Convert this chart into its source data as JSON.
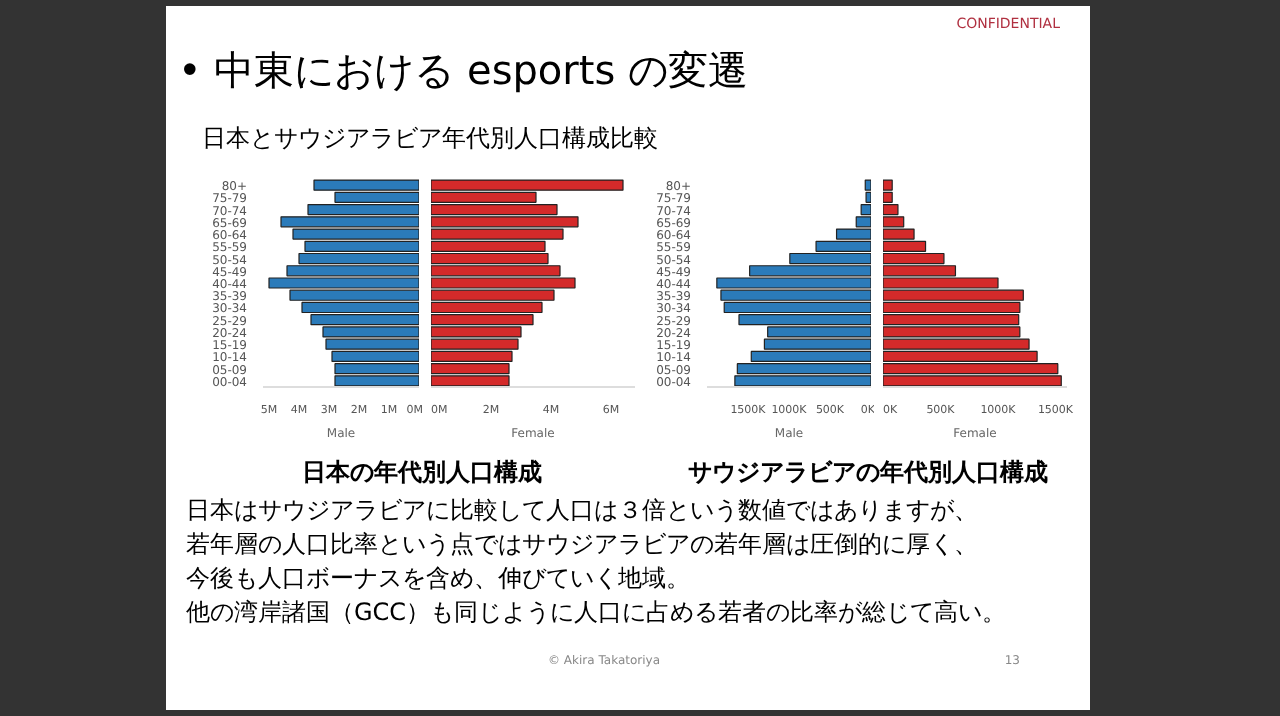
{
  "chart_data": [
    {
      "type": "other",
      "title": "• 中東における esports の変遷",
      "subtitle": "日本とサウジアラビア年代別人口構成比較",
      "annotations": [
        "CONFIDENTIAL"
      ]
    },
    {
      "type": "bar",
      "orientation": "horizontal",
      "title": "日本の年代別人口構成",
      "xlabel": "Male",
      "categories": [
        "80+",
        "75-79",
        "70-74",
        "65-69",
        "60-64",
        "55-59",
        "50-54",
        "45-49",
        "40-44",
        "35-39",
        "30-34",
        "25-29",
        "20-24",
        "15-19",
        "10-14",
        "05-09",
        "00-04"
      ],
      "series": [
        {
          "color": "#2b7bba",
          "values": [
            3.5,
            2.8,
            3.7,
            4.6,
            4.2,
            3.8,
            4.0,
            4.4,
            5.0,
            4.3,
            3.9,
            3.6,
            3.2,
            3.1,
            2.9,
            2.8,
            2.8
          ]
        }
      ],
      "xlim": [
        5.2,
        0
      ],
      "xticks": [
        {
          "value": 5,
          "label": "5M"
        },
        {
          "value": 4,
          "label": "4M"
        },
        {
          "value": 3,
          "label": "3M"
        },
        {
          "value": 2,
          "label": "2M"
        },
        {
          "value": 1,
          "label": "1M"
        },
        {
          "value": 0,
          "label": "0M"
        }
      ]
    },
    {
      "type": "bar",
      "orientation": "horizontal",
      "xlabel": "Female",
      "categories": [
        null,
        null,
        null,
        null,
        null,
        null,
        null,
        null,
        null,
        null,
        null,
        null,
        null,
        null,
        null,
        null,
        null
      ],
      "series": [
        {
          "color": "#d42a2a",
          "values": [
            6.4,
            3.5,
            4.2,
            4.9,
            4.4,
            3.8,
            3.9,
            4.3,
            4.8,
            4.1,
            3.7,
            3.4,
            3.0,
            2.9,
            2.7,
            2.6,
            2.6
          ]
        }
      ],
      "xlim": [
        0,
        6.8
      ],
      "xticks": [
        {
          "value": 0,
          "label": "0M"
        },
        {
          "value": 2,
          "label": "2M"
        },
        {
          "value": 4,
          "label": "4M"
        },
        {
          "value": 6,
          "label": "6M"
        }
      ]
    },
    {
      "type": "bar",
      "orientation": "horizontal",
      "title": "サウジアラビアの年代別人口構成",
      "xlabel": "Male",
      "categories": [
        "80+",
        "75-79",
        "70-74",
        "65-69",
        "60-64",
        "55-59",
        "50-54",
        "45-49",
        "40-44",
        "35-39",
        "30-34",
        "25-29",
        "20-24",
        "15-19",
        "10-14",
        "05-09",
        "00-04"
      ],
      "series": [
        {
          "color": "#2b7bba",
          "values": [
            70,
            60,
            120,
            180,
            420,
            670,
            990,
            1480,
            1880,
            1830,
            1790,
            1610,
            1260,
            1300,
            1460,
            1630,
            1660
          ]
        }
      ],
      "xlim": [
        2000,
        0
      ],
      "xticks": [
        {
          "value": 1500,
          "label": "1500K"
        },
        {
          "value": 1000,
          "label": "1000K"
        },
        {
          "value": 500,
          "label": "500K"
        },
        {
          "value": 0,
          "label": "0K"
        }
      ]
    },
    {
      "type": "bar",
      "orientation": "horizontal",
      "xlabel": "Female",
      "categories": [
        null,
        null,
        null,
        null,
        null,
        null,
        null,
        null,
        null,
        null,
        null,
        null,
        null,
        null,
        null,
        null,
        null
      ],
      "series": [
        {
          "color": "#d42a2a",
          "values": [
            80,
            80,
            130,
            180,
            270,
            370,
            530,
            630,
            1000,
            1220,
            1190,
            1180,
            1190,
            1270,
            1340,
            1520,
            1550
          ]
        }
      ],
      "xlim": [
        0,
        1600
      ],
      "xticks": [
        {
          "value": 0,
          "label": "0K"
        },
        {
          "value": 500,
          "label": "500K"
        },
        {
          "value": 1000,
          "label": "1000K"
        },
        {
          "value": 1500,
          "label": "1500K"
        }
      ]
    },
    {
      "type": "other",
      "annotations": [
        "日本はサウジアラビアに比較して人口は３倍という数値ではありますが、",
        "若年層の人口比率という点ではサウジアラビアの若年層は圧倒的に厚く、",
        "今後も人口ボーナスを含め、伸びていく地域。",
        "他の湾岸諸国（GCC）も同じように人口に占める若者の比率が総じて高い。"
      ]
    },
    {
      "type": "other",
      "annotations": [
        "© Akira Takatoriya",
        "13"
      ]
    }
  ]
}
